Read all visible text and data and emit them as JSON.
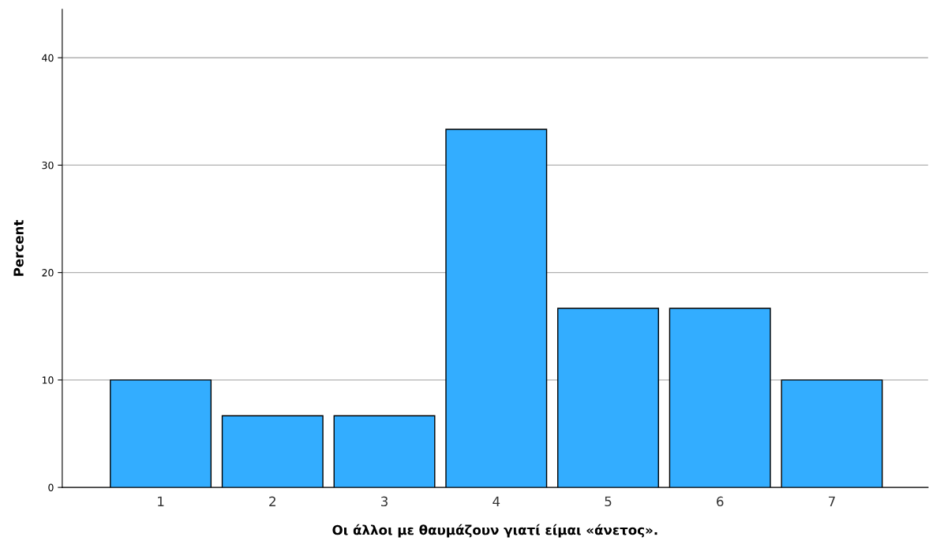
{
  "chart_data": {
    "type": "bar",
    "xlabel": "Οι άλλοι με θαυμάζουν γιατί είμαι «άνετος».",
    "ylabel": "Percent",
    "categories": [
      "1",
      "2",
      "3",
      "4",
      "5",
      "6",
      "7"
    ],
    "values": [
      10.0,
      6.67,
      6.67,
      33.33,
      16.67,
      16.67,
      10.0
    ],
    "color": "#33adff",
    "ylim": [
      0,
      44.5
    ],
    "yticks": [
      0,
      10,
      20,
      30,
      40
    ],
    "grid": "y",
    "legend": false
  }
}
